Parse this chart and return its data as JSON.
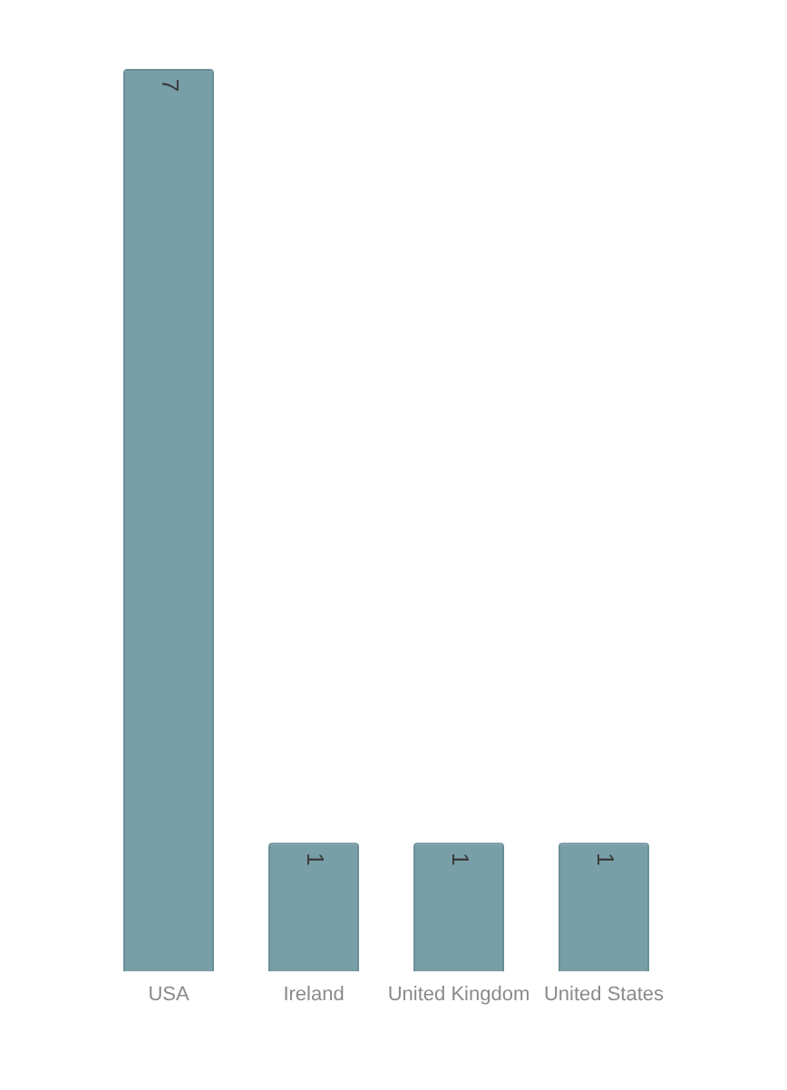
{
  "chart_data": {
    "type": "bar",
    "categories": [
      "USA",
      "Ireland",
      "United Kingdom",
      "United States"
    ],
    "values": [
      7,
      1,
      1,
      1
    ],
    "color": "#789ea8",
    "data_labels": true,
    "grid": false,
    "legend": false
  }
}
